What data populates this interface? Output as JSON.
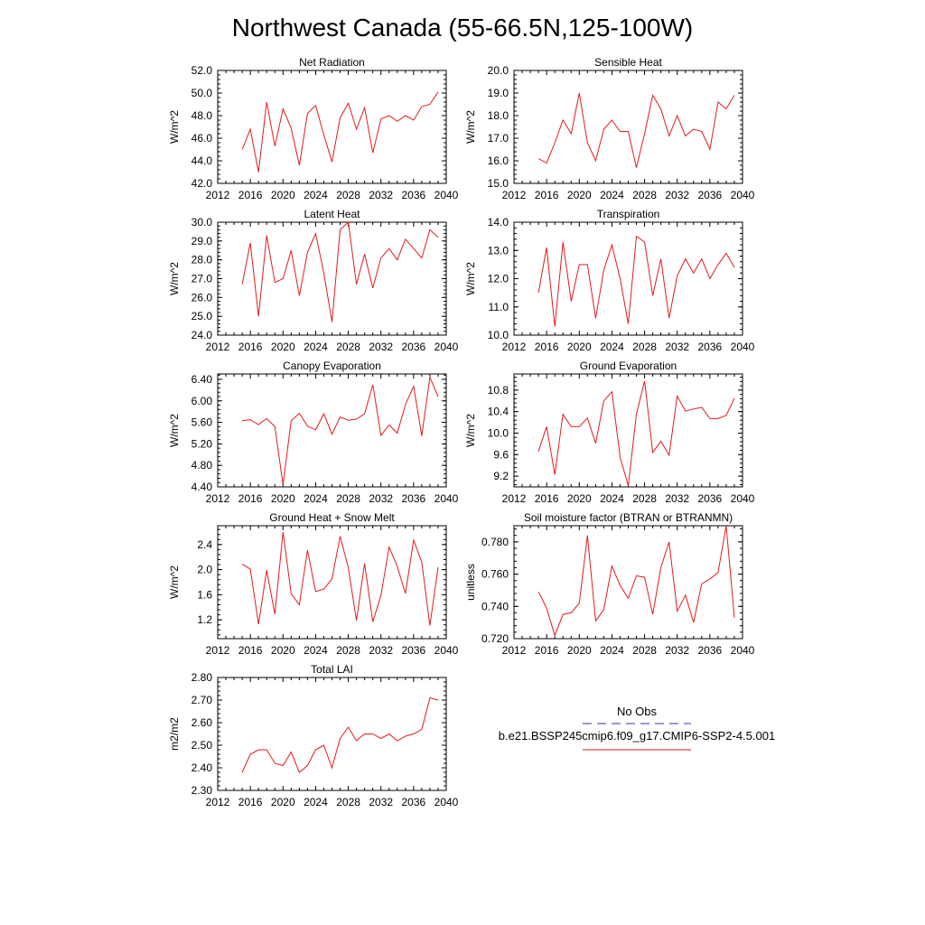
{
  "page": {
    "title": "Northwest Canada (55-66.5N,125-100W)"
  },
  "legend": {
    "obs_label": "No Obs",
    "obs_color": "#3333aa",
    "model_label": "b.e21.BSSP245cmip6.f09_g17.CMIP6-SSP2-4.5.001",
    "model_color": "#e41a1c"
  },
  "chart_data": [
    {
      "type": "line",
      "title": "Net Radiation",
      "ylabel": "W/m^2",
      "xlim": [
        2012,
        2040
      ],
      "ylim": [
        42.0,
        52.0
      ],
      "xticks": [
        2012,
        2016,
        2020,
        2024,
        2028,
        2032,
        2036,
        2040
      ],
      "xtick_labels": [
        "2012",
        "2016",
        "2020",
        "2024",
        "2028",
        "2032",
        "2036",
        "2040"
      ],
      "yticks": [
        42.0,
        44.0,
        46.0,
        48.0,
        50.0,
        52.0
      ],
      "ytick_labels": [
        "42.0",
        "44.0",
        "46.0",
        "48.0",
        "50.0",
        "52.0"
      ],
      "x": [
        2015,
        2016,
        2017,
        2018,
        2019,
        2020,
        2021,
        2022,
        2023,
        2024,
        2025,
        2026,
        2027,
        2028,
        2029,
        2030,
        2031,
        2032,
        2033,
        2034,
        2035,
        2036,
        2037,
        2038,
        2039
      ],
      "series": [
        {
          "values": [
            45.0,
            46.8,
            43.0,
            49.2,
            45.3,
            48.6,
            46.9,
            43.6,
            48.2,
            48.9,
            46.3,
            43.9,
            47.8,
            49.1,
            46.8,
            48.7,
            44.7,
            47.7,
            48.0,
            47.5,
            48.0,
            47.6,
            48.8,
            49.0,
            50.1
          ]
        }
      ]
    },
    {
      "type": "line",
      "title": "Sensible Heat",
      "ylabel": "W/m^2",
      "xlim": [
        2012,
        2040
      ],
      "ylim": [
        15.0,
        20.0
      ],
      "xticks": [
        2012,
        2016,
        2020,
        2024,
        2028,
        2032,
        2036,
        2040
      ],
      "xtick_labels": [
        "2012",
        "2016",
        "2020",
        "2024",
        "2028",
        "2032",
        "2036",
        "2040"
      ],
      "yticks": [
        15.0,
        16.0,
        17.0,
        18.0,
        19.0,
        20.0
      ],
      "ytick_labels": [
        "15.0",
        "16.0",
        "17.0",
        "18.0",
        "19.0",
        "20.0"
      ],
      "x": [
        2015,
        2016,
        2017,
        2018,
        2019,
        2020,
        2021,
        2022,
        2023,
        2024,
        2025,
        2026,
        2027,
        2028,
        2029,
        2030,
        2031,
        2032,
        2033,
        2034,
        2035,
        2036,
        2037,
        2038,
        2039
      ],
      "series": [
        {
          "values": [
            16.1,
            15.9,
            16.8,
            17.8,
            17.2,
            19.0,
            16.8,
            16.0,
            17.4,
            17.8,
            17.3,
            17.3,
            15.7,
            17.2,
            18.9,
            18.3,
            17.1,
            18.0,
            17.1,
            17.4,
            17.3,
            16.5,
            18.6,
            18.3,
            18.9
          ]
        }
      ]
    },
    {
      "type": "line",
      "title": "Latent Heat",
      "ylabel": "W/m^2",
      "xlim": [
        2012,
        2040
      ],
      "ylim": [
        24.0,
        30.0
      ],
      "xticks": [
        2012,
        2016,
        2020,
        2024,
        2028,
        2032,
        2036,
        2040
      ],
      "xtick_labels": [
        "2012",
        "2016",
        "2020",
        "2024",
        "2028",
        "2032",
        "2036",
        "2040"
      ],
      "yticks": [
        24.0,
        25.0,
        26.0,
        27.0,
        28.0,
        29.0,
        30.0
      ],
      "ytick_labels": [
        "24.0",
        "25.0",
        "26.0",
        "27.0",
        "28.0",
        "29.0",
        "30.0"
      ],
      "x": [
        2015,
        2016,
        2017,
        2018,
        2019,
        2020,
        2021,
        2022,
        2023,
        2024,
        2025,
        2026,
        2027,
        2028,
        2029,
        2030,
        2031,
        2032,
        2033,
        2034,
        2035,
        2036,
        2037,
        2038,
        2039
      ],
      "series": [
        {
          "values": [
            26.7,
            28.9,
            25.0,
            29.3,
            26.8,
            27.0,
            28.5,
            26.1,
            28.4,
            29.4,
            27.3,
            24.7,
            29.6,
            30.0,
            26.7,
            28.3,
            26.5,
            28.1,
            28.6,
            28.0,
            29.1,
            28.6,
            28.1,
            29.6,
            29.2
          ]
        }
      ]
    },
    {
      "type": "line",
      "title": "Transpiration",
      "ylabel": "W/m^2",
      "xlim": [
        2012,
        2040
      ],
      "ylim": [
        10.0,
        14.0
      ],
      "xticks": [
        2012,
        2016,
        2020,
        2024,
        2028,
        2032,
        2036,
        2040
      ],
      "xtick_labels": [
        "2012",
        "2016",
        "2020",
        "2024",
        "2028",
        "2032",
        "2036",
        "2040"
      ],
      "yticks": [
        10.0,
        11.0,
        12.0,
        13.0,
        14.0
      ],
      "ytick_labels": [
        "10.0",
        "11.0",
        "12.0",
        "13.0",
        "14.0"
      ],
      "x": [
        2015,
        2016,
        2017,
        2018,
        2019,
        2020,
        2021,
        2022,
        2023,
        2024,
        2025,
        2026,
        2027,
        2028,
        2029,
        2030,
        2031,
        2032,
        2033,
        2034,
        2035,
        2036,
        2037,
        2038,
        2039
      ],
      "series": [
        {
          "values": [
            11.5,
            13.1,
            10.3,
            13.3,
            11.2,
            12.5,
            12.5,
            10.6,
            12.3,
            13.2,
            12.0,
            10.4,
            13.5,
            13.3,
            11.4,
            12.7,
            10.6,
            12.1,
            12.7,
            12.2,
            12.7,
            12.0,
            12.5,
            12.9,
            12.4
          ]
        }
      ]
    },
    {
      "type": "line",
      "title": "Canopy Evaporation",
      "ylabel": "W/m^2",
      "xlim": [
        2012,
        2040
      ],
      "ylim": [
        4.4,
        6.5
      ],
      "xticks": [
        2012,
        2016,
        2020,
        2024,
        2028,
        2032,
        2036,
        2040
      ],
      "xtick_labels": [
        "2012",
        "2016",
        "2020",
        "2024",
        "2028",
        "2032",
        "2036",
        "2040"
      ],
      "yticks": [
        4.4,
        4.8,
        5.2,
        5.6,
        6.0,
        6.4
      ],
      "ytick_labels": [
        "4.40",
        "4.80",
        "5.20",
        "5.60",
        "6.00",
        "6.40"
      ],
      "x": [
        2015,
        2016,
        2017,
        2018,
        2019,
        2020,
        2021,
        2022,
        2023,
        2024,
        2025,
        2026,
        2027,
        2028,
        2029,
        2030,
        2031,
        2032,
        2033,
        2034,
        2035,
        2036,
        2037,
        2038,
        2039
      ],
      "series": [
        {
          "values": [
            5.63,
            5.65,
            5.56,
            5.67,
            5.52,
            4.44,
            5.63,
            5.77,
            5.53,
            5.46,
            5.76,
            5.38,
            5.7,
            5.64,
            5.66,
            5.76,
            6.3,
            5.36,
            5.55,
            5.4,
            5.93,
            6.27,
            5.35,
            6.44,
            6.08
          ]
        }
      ]
    },
    {
      "type": "line",
      "title": "Ground Evaporation",
      "ylabel": "W/m^2",
      "xlim": [
        2012,
        2040
      ],
      "ylim": [
        9.0,
        11.1
      ],
      "xticks": [
        2012,
        2016,
        2020,
        2024,
        2028,
        2032,
        2036,
        2040
      ],
      "xtick_labels": [
        "2012",
        "2016",
        "2020",
        "2024",
        "2028",
        "2032",
        "2036",
        "2040"
      ],
      "yticks": [
        9.2,
        9.6,
        10.0,
        10.4,
        10.8
      ],
      "ytick_labels": [
        "9.2",
        "9.6",
        "10.0",
        "10.4",
        "10.8"
      ],
      "x": [
        2015,
        2016,
        2017,
        2018,
        2019,
        2020,
        2021,
        2022,
        2023,
        2024,
        2025,
        2026,
        2027,
        2028,
        2029,
        2030,
        2031,
        2032,
        2033,
        2034,
        2035,
        2036,
        2037,
        2038,
        2039
      ],
      "series": [
        {
          "values": [
            9.66,
            10.12,
            9.23,
            10.35,
            10.12,
            10.12,
            10.28,
            9.81,
            10.6,
            10.77,
            9.55,
            9.02,
            10.35,
            10.97,
            9.64,
            9.85,
            9.59,
            10.69,
            10.41,
            10.45,
            10.48,
            10.27,
            10.27,
            10.33,
            10.65
          ]
        }
      ]
    },
    {
      "type": "line",
      "title": "Ground Heat + Snow Melt",
      "ylabel": "W/m^2",
      "xlim": [
        2012,
        2040
      ],
      "ylim": [
        0.9,
        2.7
      ],
      "xticks": [
        2012,
        2016,
        2020,
        2024,
        2028,
        2032,
        2036,
        2040
      ],
      "xtick_labels": [
        "2012",
        "2016",
        "2020",
        "2024",
        "2028",
        "2032",
        "2036",
        "2040"
      ],
      "yticks": [
        1.2,
        1.6,
        2.0,
        2.4
      ],
      "ytick_labels": [
        "1.2",
        "1.6",
        "2.0",
        "2.4"
      ],
      "x": [
        2015,
        2016,
        2017,
        2018,
        2019,
        2020,
        2021,
        2022,
        2023,
        2024,
        2025,
        2026,
        2027,
        2028,
        2029,
        2030,
        2031,
        2032,
        2033,
        2034,
        2035,
        2036,
        2037,
        2038,
        2039
      ],
      "series": [
        {
          "values": [
            2.09,
            2.01,
            1.13,
            1.99,
            1.29,
            2.6,
            1.62,
            1.44,
            2.31,
            1.65,
            1.69,
            1.85,
            2.53,
            2.03,
            1.19,
            2.1,
            1.17,
            1.59,
            2.36,
            2.05,
            1.62,
            2.47,
            2.12,
            1.11,
            2.04
          ]
        }
      ]
    },
    {
      "type": "line",
      "title": "Soil moisture factor (BTRAN or BTRANMN)",
      "ylabel": "unitless",
      "xlim": [
        2012,
        2040
      ],
      "ylim": [
        0.72,
        0.79
      ],
      "xticks": [
        2012,
        2016,
        2020,
        2024,
        2028,
        2032,
        2036,
        2040
      ],
      "xtick_labels": [
        "2012",
        "2016",
        "2020",
        "2024",
        "2028",
        "2032",
        "2036",
        "2040"
      ],
      "yticks": [
        0.72,
        0.74,
        0.76,
        0.78
      ],
      "ytick_labels": [
        "0.720",
        "0.740",
        "0.760",
        "0.780"
      ],
      "x": [
        2015,
        2016,
        2017,
        2018,
        2019,
        2020,
        2021,
        2022,
        2023,
        2024,
        2025,
        2026,
        2027,
        2028,
        2029,
        2030,
        2031,
        2032,
        2033,
        2034,
        2035,
        2036,
        2037,
        2038,
        2039
      ],
      "series": [
        {
          "values": [
            0.749,
            0.739,
            0.722,
            0.735,
            0.736,
            0.742,
            0.784,
            0.731,
            0.738,
            0.765,
            0.753,
            0.745,
            0.759,
            0.758,
            0.735,
            0.764,
            0.78,
            0.737,
            0.747,
            0.73,
            0.754,
            0.757,
            0.761,
            0.79,
            0.733
          ]
        }
      ]
    },
    {
      "type": "line",
      "title": "Total LAI",
      "ylabel": "m2/m2",
      "xlim": [
        2012,
        2040
      ],
      "ylim": [
        2.3,
        2.8
      ],
      "xticks": [
        2012,
        2016,
        2020,
        2024,
        2028,
        2032,
        2036,
        2040
      ],
      "xtick_labels": [
        "2012",
        "2016",
        "2020",
        "2024",
        "2028",
        "2032",
        "2036",
        "2040"
      ],
      "yticks": [
        2.3,
        2.4,
        2.5,
        2.6,
        2.7,
        2.8
      ],
      "ytick_labels": [
        "2.30",
        "2.40",
        "2.50",
        "2.60",
        "2.70",
        "2.80"
      ],
      "x": [
        2015,
        2016,
        2017,
        2018,
        2019,
        2020,
        2021,
        2022,
        2023,
        2024,
        2025,
        2026,
        2027,
        2028,
        2029,
        2030,
        2031,
        2032,
        2033,
        2034,
        2035,
        2036,
        2037,
        2038,
        2039
      ],
      "series": [
        {
          "values": [
            2.38,
            2.46,
            2.48,
            2.48,
            2.42,
            2.41,
            2.47,
            2.38,
            2.41,
            2.48,
            2.5,
            2.4,
            2.53,
            2.58,
            2.52,
            2.55,
            2.55,
            2.53,
            2.55,
            2.52,
            2.54,
            2.55,
            2.57,
            2.71,
            2.7
          ]
        }
      ]
    }
  ]
}
